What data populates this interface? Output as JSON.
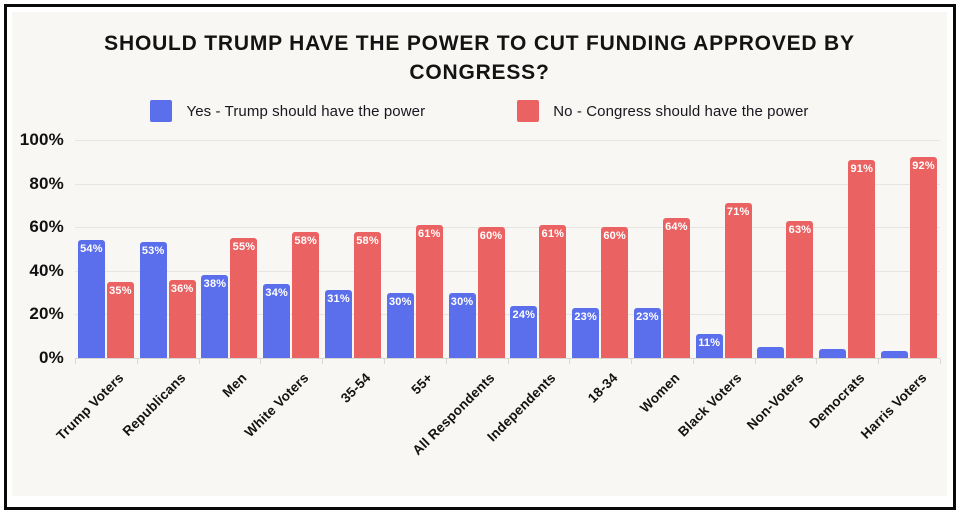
{
  "title": {
    "line1": "SHOULD TRUMP HAVE THE POWER TO CUT FUNDING APPROVED BY",
    "line2": "CONGRESS?"
  },
  "legend": {
    "items": [
      {
        "label": "Yes - Trump should have the power",
        "color": "#5B6FEC"
      },
      {
        "label": "No - Congress should have the power",
        "color": "#EB6262"
      }
    ]
  },
  "colors": {
    "card_background": "#F9F7F3",
    "frame": "#0A0A0A",
    "gridline": "#E7E5E0",
    "baseline": "#D9D7D2",
    "yes_bar": "#5B6FEC",
    "no_bar": "#EB6262",
    "text": "#131313",
    "bar_value_text": "#FFFFFF"
  },
  "y_axis": {
    "ticks": [
      {
        "label": "0%",
        "value": 0
      },
      {
        "label": "20%",
        "value": 20
      },
      {
        "label": "40%",
        "value": 40
      },
      {
        "label": "60%",
        "value": 60
      },
      {
        "label": "80%",
        "value": 80
      },
      {
        "label": "100%",
        "value": 100
      }
    ]
  },
  "chart_data": {
    "type": "bar",
    "title": "SHOULD TRUMP HAVE THE POWER TO CUT FUNDING APPROVED BY CONGRESS?",
    "categories": [
      "Trump Voters",
      "Republicans",
      "Men",
      "White Voters",
      "35-54",
      "55+",
      "All Respondents",
      "Independents",
      "18-34",
      "Women",
      "Black Voters",
      "Non-Voters",
      "Democrats",
      "Harris Voters"
    ],
    "series": [
      {
        "name": "Yes - Trump should have the power",
        "color": "#5B6FEC",
        "values": [
          54,
          53,
          38,
          34,
          31,
          30,
          30,
          24,
          23,
          23,
          11,
          5,
          4,
          3
        ],
        "data_labels": [
          "54%",
          "53%",
          "38%",
          "34%",
          "31%",
          "30%",
          "30%",
          "24%",
          "23%",
          "23%",
          "11%",
          "",
          "",
          ""
        ]
      },
      {
        "name": "No - Congress should have the power",
        "color": "#EB6262",
        "values": [
          35,
          36,
          55,
          58,
          58,
          61,
          60,
          61,
          60,
          64,
          71,
          63,
          91,
          92
        ],
        "data_labels": [
          "35%",
          "36%",
          "55%",
          "58%",
          "58%",
          "61%",
          "60%",
          "61%",
          "60%",
          "64%",
          "71%",
          "63%",
          "91%",
          "92%"
        ]
      }
    ],
    "ylim": [
      0,
      100
    ],
    "grid": true,
    "legend_position": "top"
  }
}
